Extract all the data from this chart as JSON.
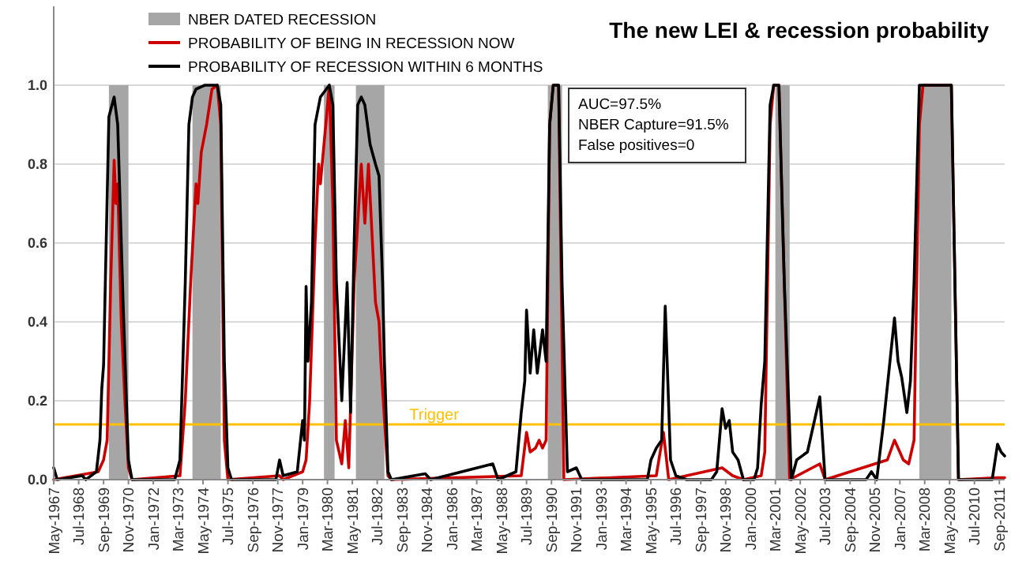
{
  "chart_data": {
    "type": "line",
    "title": "The new LEI & recession probability",
    "annotations": [
      "AUC=97.5%",
      "NBER  Capture=91.5%",
      "False positives=0"
    ],
    "xlim": [
      "1967-05",
      "2011-12"
    ],
    "xticks": [
      {
        "value": "1967-05",
        "label": "May-1967"
      },
      {
        "value": "1968-07",
        "label": "Jul-1968"
      },
      {
        "value": "1969-09",
        "label": "Sep-1969"
      },
      {
        "value": "1970-11",
        "label": "Nov-1970"
      },
      {
        "value": "1972-01",
        "label": "Jan-1972"
      },
      {
        "value": "1973-03",
        "label": "Mar-1973"
      },
      {
        "value": "1974-05",
        "label": "May-1974"
      },
      {
        "value": "1975-07",
        "label": "Jul-1975"
      },
      {
        "value": "1976-09",
        "label": "Sep-1976"
      },
      {
        "value": "1977-11",
        "label": "Nov-1977"
      },
      {
        "value": "1979-01",
        "label": "Jan-1979"
      },
      {
        "value": "1980-03",
        "label": "Mar-1980"
      },
      {
        "value": "1981-05",
        "label": "May-1981"
      },
      {
        "value": "1982-07",
        "label": "Jul-1982"
      },
      {
        "value": "1983-09",
        "label": "Sep-1983"
      },
      {
        "value": "1984-11",
        "label": "Nov-1984"
      },
      {
        "value": "1986-01",
        "label": "Jan-1986"
      },
      {
        "value": "1987-03",
        "label": "Mar-1987"
      },
      {
        "value": "1988-05",
        "label": "May-1988"
      },
      {
        "value": "1989-07",
        "label": "Jul-1989"
      },
      {
        "value": "1990-09",
        "label": "Sep-1990"
      },
      {
        "value": "1991-11",
        "label": "Nov-1991"
      },
      {
        "value": "1993-01",
        "label": "Jan-1993"
      },
      {
        "value": "1994-03",
        "label": "Mar-1994"
      },
      {
        "value": "1995-05",
        "label": "May-1995"
      },
      {
        "value": "1996-07",
        "label": "Jul-1996"
      },
      {
        "value": "1997-09",
        "label": "Sep-1997"
      },
      {
        "value": "1998-11",
        "label": "Nov-1998"
      },
      {
        "value": "2000-01",
        "label": "Jan-2000"
      },
      {
        "value": "2001-03",
        "label": "Mar-2001"
      },
      {
        "value": "2002-05",
        "label": "May-2002"
      },
      {
        "value": "2003-07",
        "label": "Jul-2003"
      },
      {
        "value": "2004-09",
        "label": "Sep-2004"
      },
      {
        "value": "2005-11",
        "label": "Nov-2005"
      },
      {
        "value": "2007-01",
        "label": "Jan-2007"
      },
      {
        "value": "2008-03",
        "label": "Mar-2008"
      },
      {
        "value": "2009-05",
        "label": "May-2009"
      },
      {
        "value": "2010-07",
        "label": "Jul-2010"
      },
      {
        "value": "2011-09",
        "label": "Sep-2011"
      }
    ],
    "ylim": [
      0,
      1.2
    ],
    "yticks": [
      {
        "value": 0,
        "label": "0.0"
      },
      {
        "value": 0.2,
        "label": "0.2"
      },
      {
        "value": 0.4,
        "label": "0.4"
      },
      {
        "value": 0.6,
        "label": "0.6"
      },
      {
        "value": 0.8,
        "label": "0.8"
      },
      {
        "value": 1,
        "label": "1.0"
      }
    ],
    "grid": "y",
    "legend": "top left",
    "line_style": "solid",
    "marker": "none",
    "bands": [
      {
        "axis": "x",
        "from": "1969-12",
        "to": "1970-11",
        "label": "NBER DATED RECESSION",
        "color": "#a6a6a6"
      },
      {
        "axis": "x",
        "from": "1973-11",
        "to": "1975-03",
        "color": "#a6a6a6"
      },
      {
        "axis": "x",
        "from": "1980-01",
        "to": "1980-07",
        "color": "#a6a6a6"
      },
      {
        "axis": "x",
        "from": "1981-07",
        "to": "1982-11",
        "color": "#a6a6a6"
      },
      {
        "axis": "x",
        "from": "1990-07",
        "to": "1991-03",
        "color": "#a6a6a6"
      },
      {
        "axis": "x",
        "from": "2001-03",
        "to": "2001-11",
        "color": "#a6a6a6"
      },
      {
        "axis": "x",
        "from": "2007-12",
        "to": "2009-06",
        "color": "#a6a6a6"
      }
    ],
    "ref_lines": [
      {
        "axis": "y",
        "value": 0.14,
        "label": "Trigger",
        "color": "#ffc000"
      }
    ],
    "series": [
      {
        "name": "PROBABILITY OF BEING IN RECESSION NOW",
        "color": "#cc0000",
        "x": [
          "1967-05",
          "1969-06",
          "1969-09",
          "1969-11",
          "1970-01",
          "1970-03",
          "1970-04",
          "1970-05",
          "1970-07",
          "1970-09",
          "1970-11",
          "1971-01",
          "1973-04",
          "1973-07",
          "1973-10",
          "1974-01",
          "1974-02",
          "1974-04",
          "1974-07",
          "1974-10",
          "1975-01",
          "1975-03",
          "1975-05",
          "1975-07",
          "1977-12",
          "1978-02",
          "1979-01",
          "1979-03",
          "1979-05",
          "1979-08",
          "1979-10",
          "1979-11",
          "1980-02",
          "1980-04",
          "1980-06",
          "1980-08",
          "1980-11",
          "1981-01",
          "1981-03",
          "1981-06",
          "1981-10",
          "1981-12",
          "1982-02",
          "1982-06",
          "1982-08",
          "1982-09",
          "1983-01",
          "1983-03",
          "1989-04",
          "1989-07",
          "1989-09",
          "1989-12",
          "1990-02",
          "1990-04",
          "1990-06",
          "1990-08",
          "1990-10",
          "1991-01",
          "1991-04",
          "1995-08",
          "1995-12",
          "1996-03",
          "1998-09",
          "1999-03",
          "1999-09",
          "2000-07",
          "2000-09",
          "2000-12",
          "2001-02",
          "2001-05",
          "2001-11",
          "2003-04",
          "2003-07",
          "2006-06",
          "2006-10",
          "2006-12",
          "2007-03",
          "2007-06",
          "2007-09",
          "2007-12",
          "2008-02",
          "2009-06",
          "2009-10",
          "2011-08",
          "2011-12"
        ],
        "values": [
          0,
          0.02,
          0.05,
          0.1,
          0.5,
          0.81,
          0.7,
          0.75,
          0.4,
          0.2,
          0.03,
          0,
          0.01,
          0.2,
          0.5,
          0.75,
          0.7,
          0.83,
          0.9,
          0.99,
          1,
          0.9,
          0.1,
          0,
          0.01,
          0,
          0.02,
          0.05,
          0.2,
          0.6,
          0.8,
          0.75,
          0.9,
          1,
          0.7,
          0.1,
          0.04,
          0.15,
          0.03,
          0.5,
          0.8,
          0.65,
          0.8,
          0.45,
          0.4,
          0.3,
          0.01,
          0,
          0.01,
          0.12,
          0.07,
          0.08,
          0.1,
          0.08,
          0.1,
          0.9,
          1,
          1,
          0,
          0.01,
          0.12,
          0,
          0.03,
          0.01,
          0,
          0.01,
          0.07,
          0.9,
          1,
          1,
          0,
          0.04,
          0,
          0.05,
          0.1,
          0.08,
          0.05,
          0.04,
          0.1,
          0.9,
          1,
          1,
          0,
          0.005,
          0.005
        ]
      },
      {
        "name": "PROBABILITY OF RECESSION WITHIN 6 MONTHS",
        "color": "#000000",
        "x": [
          "1967-05",
          "1967-07",
          "1968-09",
          "1968-11",
          "1969-05",
          "1969-07",
          "1969-08",
          "1969-09",
          "1969-10",
          "1969-12",
          "1970-03",
          "1970-05",
          "1970-08",
          "1970-11",
          "1971-01",
          "1973-01",
          "1973-04",
          "1973-07",
          "1973-09",
          "1973-11",
          "1974-01",
          "1974-06",
          "1975-01",
          "1975-03",
          "1975-05",
          "1975-07",
          "1975-09",
          "1977-10",
          "1977-12",
          "1978-02",
          "1978-10",
          "1979-01",
          "1979-02",
          "1979-03",
          "1979-04",
          "1979-06",
          "1979-08",
          "1979-11",
          "1980-04",
          "1980-06",
          "1980-08",
          "1980-11",
          "1981-02",
          "1981-04",
          "1981-06",
          "1981-08",
          "1981-10",
          "1981-12",
          "1982-03",
          "1982-06",
          "1982-08",
          "1982-10",
          "1982-11",
          "1983-01",
          "1983-03",
          "1984-10",
          "1985-01",
          "1987-12",
          "1988-03",
          "1989-01",
          "1989-04",
          "1989-06",
          "1989-07",
          "1989-09",
          "1989-11",
          "1990-01",
          "1990-04",
          "1990-06",
          "1990-08",
          "1990-10",
          "1991-01",
          "1991-03",
          "1991-06",
          "1991-11",
          "1992-02",
          "1995-03",
          "1995-05",
          "1995-08",
          "1995-11",
          "1996-01",
          "1996-04",
          "1996-07",
          "1997-01",
          "1998-03",
          "1998-06",
          "1998-09",
          "1998-11",
          "1999-01",
          "1999-03",
          "1999-06",
          "1999-09",
          "2000-03",
          "2000-05",
          "2000-07",
          "2000-09",
          "2000-12",
          "2001-02",
          "2001-05",
          "2001-08",
          "2001-12",
          "2002-03",
          "2002-09",
          "2003-04",
          "2003-07",
          "2005-06",
          "2005-09",
          "2005-12",
          "2006-04",
          "2006-10",
          "2006-12",
          "2007-02",
          "2007-05",
          "2007-07",
          "2007-09",
          "2007-12",
          "2009-06",
          "2009-10",
          "2011-05",
          "2011-08",
          "2011-10",
          "2011-12"
        ],
        "values": [
          0.03,
          0,
          0.01,
          0,
          0.02,
          0.1,
          0.23,
          0.29,
          0.5,
          0.92,
          0.97,
          0.9,
          0.45,
          0.05,
          0,
          0,
          0.05,
          0.5,
          0.9,
          0.97,
          0.99,
          1,
          1,
          0.95,
          0.3,
          0.03,
          0,
          0,
          0.05,
          0.01,
          0.02,
          0.15,
          0.1,
          0.49,
          0.3,
          0.45,
          0.9,
          0.97,
          1,
          0.95,
          0.5,
          0.2,
          0.5,
          0.17,
          0.6,
          0.95,
          0.97,
          0.95,
          0.85,
          0.8,
          0.77,
          0.5,
          0.3,
          0.02,
          0,
          0.015,
          0,
          0.04,
          0,
          0.02,
          0.17,
          0.25,
          0.43,
          0.27,
          0.38,
          0.27,
          0.38,
          0.3,
          0.9,
          1,
          1,
          0.5,
          0.02,
          0.03,
          0,
          0,
          0.05,
          0.08,
          0.1,
          0.44,
          0.05,
          0.01,
          0,
          0,
          0.02,
          0.18,
          0.13,
          0.15,
          0.07,
          0.05,
          0,
          0,
          0.03,
          0.19,
          0.3,
          0.95,
          1,
          1,
          0.5,
          0,
          0.05,
          0.07,
          0.21,
          0,
          0,
          0.02,
          0,
          0.15,
          0.41,
          0.3,
          0.26,
          0.17,
          0.25,
          0.5,
          1,
          1,
          0,
          0,
          0.09,
          0.07,
          0.06
        ]
      }
    ]
  }
}
